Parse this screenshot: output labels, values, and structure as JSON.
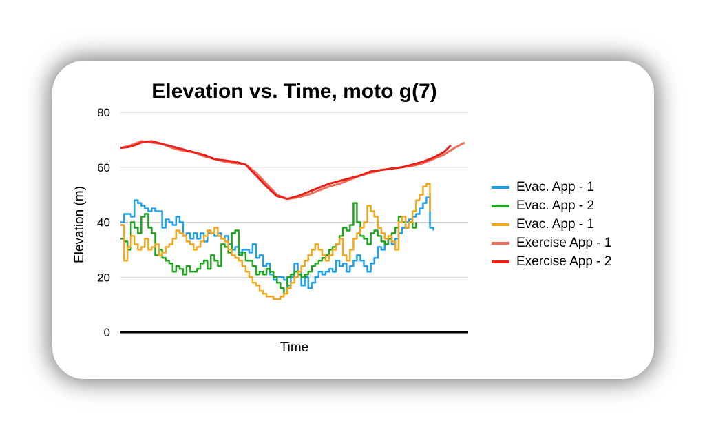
{
  "chart_data": {
    "type": "line",
    "title": "Elevation vs. Time, moto g(7)",
    "xlabel": "Time",
    "ylabel": "Elevation (m)",
    "ylim": [
      0,
      80
    ],
    "yticks": [
      "0",
      "20",
      "40",
      "60",
      "80"
    ],
    "grid": true,
    "legend_position": "right",
    "series": [
      {
        "name": "Evac. App - 1",
        "color": "#1ea1e9",
        "x": [
          0,
          1,
          2,
          3,
          4,
          5,
          6,
          7,
          8,
          9,
          10,
          11,
          12,
          13,
          14,
          15,
          16,
          17,
          18,
          19,
          20,
          21,
          22,
          23,
          24,
          25,
          26,
          27,
          28,
          29,
          30,
          31,
          32,
          33,
          34,
          35,
          36,
          37,
          38,
          39,
          40,
          41,
          42,
          43,
          44,
          45,
          46,
          47,
          48,
          49,
          50,
          51,
          52,
          53,
          54,
          55,
          56,
          57,
          58,
          59,
          60,
          61,
          62,
          63,
          64,
          65,
          66,
          67,
          68,
          69,
          70,
          71,
          72,
          73,
          74,
          75,
          76,
          77,
          78,
          79,
          80,
          81,
          82,
          83,
          84,
          85,
          86,
          87,
          88,
          89,
          90
        ],
        "values": [
          40,
          43,
          43,
          42,
          48,
          47,
          46,
          45,
          44,
          45,
          44,
          44,
          38,
          41,
          40,
          39,
          42,
          40,
          35,
          36,
          34,
          36,
          34,
          36,
          33,
          36,
          36,
          35,
          36,
          34,
          35,
          32,
          30,
          31,
          29,
          30,
          30,
          29,
          32,
          27,
          28,
          24,
          25,
          21,
          19,
          20,
          20,
          19,
          17,
          20,
          25,
          22,
          17,
          20,
          16,
          18,
          20,
          22,
          21,
          22,
          23,
          22,
          26,
          24,
          25,
          22,
          24,
          26,
          28,
          26,
          24,
          22,
          25,
          27,
          31,
          30,
          32,
          34,
          32,
          34,
          36,
          38,
          40,
          41,
          42,
          43,
          45,
          47,
          49,
          38,
          37
        ]
      },
      {
        "name": "Evac. App - 2",
        "color": "#1fa51f",
        "x": [
          0,
          1,
          2,
          3,
          4,
          5,
          6,
          7,
          8,
          9,
          10,
          11,
          12,
          13,
          14,
          15,
          16,
          17,
          18,
          19,
          20,
          21,
          22,
          23,
          24,
          25,
          26,
          27,
          28,
          29,
          30,
          31,
          32,
          33,
          34,
          35,
          36,
          37,
          38,
          39,
          40,
          41,
          42,
          43,
          44,
          45,
          46,
          47,
          48,
          49,
          50,
          51,
          52,
          53,
          54,
          55,
          56,
          57,
          58,
          59,
          60,
          61,
          62,
          63,
          64,
          65,
          66,
          67,
          68,
          69,
          70,
          71,
          72,
          73,
          74,
          75,
          76,
          77,
          78,
          79,
          80,
          81,
          82,
          83,
          84,
          85
        ],
        "values": [
          34,
          33,
          30,
          40,
          38,
          36,
          42,
          43,
          38,
          36,
          28,
          30,
          27,
          26,
          25,
          22,
          24,
          23,
          21,
          24,
          22,
          22,
          23,
          25,
          26,
          23,
          28,
          26,
          24,
          32,
          31,
          29,
          36,
          37,
          28,
          29,
          26,
          26,
          24,
          21,
          22,
          21,
          23,
          22,
          20,
          18,
          16,
          14,
          20,
          21,
          22,
          21,
          20,
          21,
          22,
          24,
          25,
          26,
          27,
          28,
          30,
          31,
          32,
          35,
          38,
          37,
          39,
          47,
          40,
          35,
          34,
          32,
          36,
          37,
          35,
          33,
          32,
          34,
          36,
          38,
          42,
          40,
          38,
          40,
          38,
          40
        ]
      },
      {
        "name": "Evac. App - 1",
        "color": "#f2a71d",
        "x": [
          0,
          1,
          2,
          3,
          4,
          5,
          6,
          7,
          8,
          9,
          10,
          11,
          12,
          13,
          14,
          15,
          16,
          17,
          18,
          19,
          20,
          21,
          22,
          23,
          24,
          25,
          26,
          27,
          28,
          29,
          30,
          31,
          32,
          33,
          34,
          35,
          36,
          37,
          38,
          39,
          40,
          41,
          42,
          43,
          44,
          45,
          46,
          47,
          48,
          49,
          50,
          51,
          52,
          53,
          54,
          55,
          56,
          57,
          58,
          59,
          60,
          61,
          62,
          63,
          64,
          65,
          66,
          67,
          68,
          69,
          70,
          71,
          72,
          73,
          74,
          75,
          76,
          77,
          78,
          79,
          80,
          81,
          82,
          83,
          84,
          85,
          86,
          87,
          88,
          89
        ],
        "values": [
          39,
          26,
          31,
          35,
          32,
          30,
          31,
          34,
          30,
          31,
          32,
          28,
          29,
          31,
          32,
          34,
          37,
          36,
          35,
          33,
          32,
          30,
          31,
          33,
          35,
          37,
          36,
          38,
          35,
          34,
          33,
          30,
          28,
          27,
          26,
          24,
          22,
          20,
          18,
          17,
          15,
          14,
          13,
          13,
          12,
          12,
          13,
          14,
          16,
          18,
          20,
          22,
          24,
          26,
          28,
          30,
          32,
          30,
          28,
          26,
          28,
          30,
          32,
          34,
          28,
          26,
          30,
          34,
          36,
          38,
          40,
          46,
          44,
          42,
          38,
          36,
          34,
          35,
          33,
          30,
          40,
          42,
          38,
          40,
          44,
          48,
          50,
          53,
          54,
          44
        ]
      },
      {
        "name": "Exercise App - 1",
        "color": "#f06e5a",
        "x": [
          0,
          3,
          6,
          9,
          12,
          15,
          18,
          21,
          24,
          27,
          30,
          33,
          36,
          39,
          42,
          45,
          48,
          51,
          54,
          57,
          60,
          63,
          66,
          69,
          72,
          75,
          78,
          81,
          84,
          87,
          90,
          93,
          96,
          99
        ],
        "values": [
          67,
          68,
          69.5,
          69,
          68.5,
          67,
          66,
          65.5,
          64,
          63,
          62,
          61.5,
          61,
          58,
          54,
          50,
          48.5,
          49,
          50,
          51.5,
          53,
          54,
          55.5,
          57,
          58,
          59,
          59.5,
          60,
          60.5,
          61.5,
          63,
          64.5,
          67,
          69
        ]
      },
      {
        "name": "Exercise App - 2",
        "color": "#e8211b",
        "x": [
          0,
          3,
          6,
          9,
          12,
          15,
          18,
          21,
          24,
          27,
          30,
          33,
          36,
          39,
          42,
          45,
          48,
          51,
          54,
          57,
          60,
          63,
          66,
          69,
          72,
          75,
          78,
          81,
          84,
          87,
          90,
          93,
          95
        ],
        "values": [
          67,
          67.5,
          69,
          69.5,
          68.5,
          67.5,
          66.5,
          65.5,
          64.5,
          63,
          62.5,
          62,
          61,
          57,
          53,
          49.5,
          48.5,
          49.5,
          51,
          52.5,
          54,
          55,
          56,
          57,
          58.5,
          59,
          59.5,
          60,
          61,
          62,
          63.5,
          65.5,
          68
        ]
      }
    ]
  }
}
